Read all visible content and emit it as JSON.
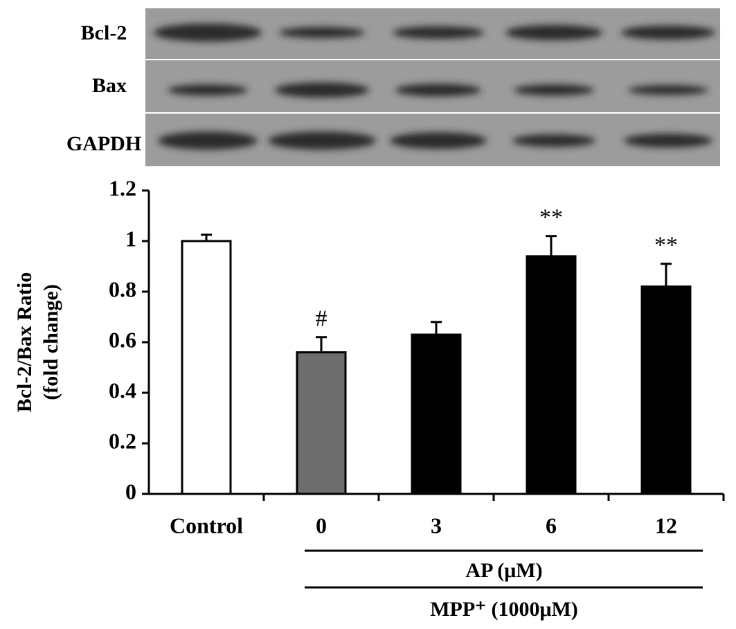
{
  "blot": {
    "rows": [
      "Bcl-2",
      "Bax",
      "GAPDH"
    ]
  },
  "chart_data": {
    "type": "bar",
    "ylabel": [
      "Bcl-2/Bax Ratio",
      "(fold change)"
    ],
    "categories": [
      "Control",
      "0",
      "3",
      "6",
      "12"
    ],
    "values": [
      1.0,
      0.56,
      0.63,
      0.94,
      0.82
    ],
    "errors": [
      0.025,
      0.06,
      0.05,
      0.08,
      0.09
    ],
    "colors": [
      "#ffffff",
      "#6e6e6e",
      "#000000",
      "#000000",
      "#000000"
    ],
    "annotations": [
      null,
      "#",
      null,
      "**",
      "**"
    ],
    "ylim": [
      0,
      1.2
    ],
    "yticks": [
      0,
      0.2,
      0.4,
      0.6,
      0.8,
      1,
      1.2
    ],
    "groups": [
      "AP (μM)",
      "MPP⁺ (1000μM)"
    ]
  }
}
